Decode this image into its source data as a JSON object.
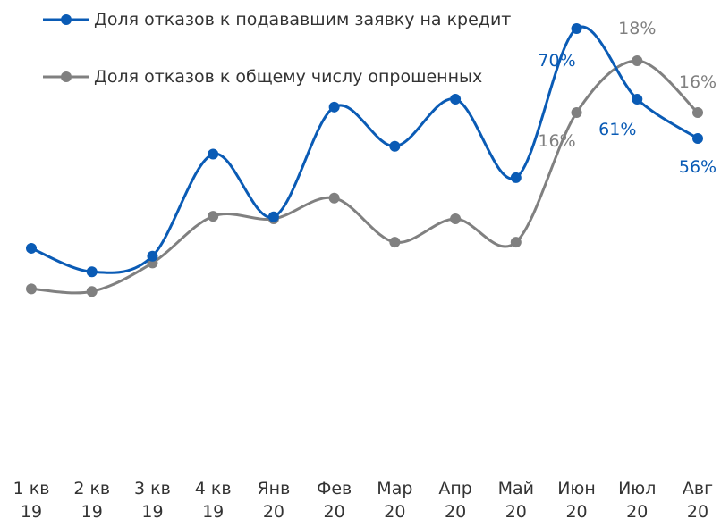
{
  "chart_data": {
    "type": "line",
    "categories": [
      "1 кв\n19",
      "2 кв\n19",
      "3 кв\n19",
      "4 кв\n19",
      "Янв\n20",
      "Фев\n20",
      "Мар\n20",
      "Апр\n20",
      "Май\n20",
      "Июн\n20",
      "Июл\n20",
      "Авг\n20"
    ],
    "series": [
      {
        "name": "Доля отказов к подававшим заявку на кредит",
        "color": "#0a5bb5",
        "values": [
          42,
          39,
          41,
          54,
          46,
          60,
          55,
          61,
          51,
          70,
          61,
          56
        ],
        "value_labels": [
          null,
          null,
          null,
          null,
          null,
          null,
          null,
          null,
          null,
          "70%",
          "61%",
          "56%"
        ]
      },
      {
        "name": "Доля отказов к общему числу опрошенных",
        "color": "#808080",
        "axis": "y2",
        "values": [
          9.2,
          9.1,
          10.2,
          12,
          11.9,
          12.7,
          11,
          11.9,
          11,
          16,
          18,
          16
        ],
        "value_labels": [
          null,
          null,
          null,
          null,
          null,
          null,
          null,
          null,
          null,
          "16%",
          "18%",
          "16%"
        ]
      }
    ],
    "ylim": [
      19,
      72.5
    ],
    "y2lim": [
      3.8,
      20
    ],
    "legend": "top-left"
  }
}
